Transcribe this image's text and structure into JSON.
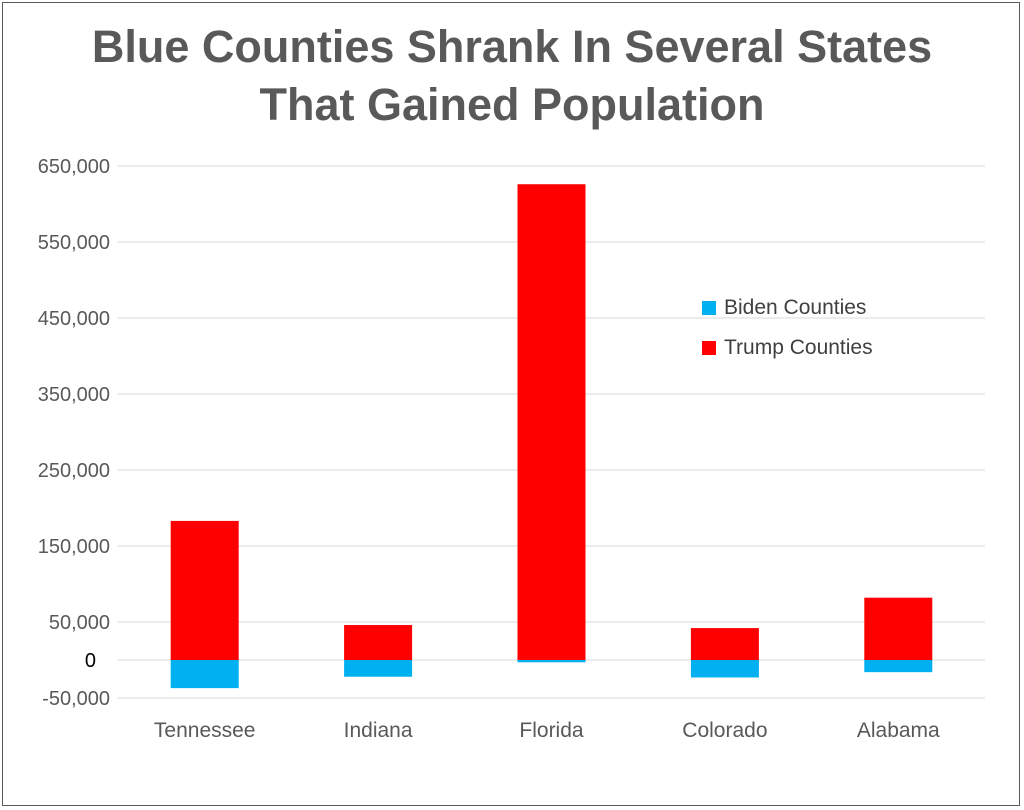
{
  "title": {
    "line1": "Blue Counties Shrank In Several States",
    "line2": "That Gained Population"
  },
  "colors": {
    "biden": "#00B0F0",
    "trump": "#FF0000",
    "grid": "#D9D9D9",
    "text": "#595959"
  },
  "legend": {
    "placement": "right",
    "items": [
      {
        "label": "Biden Counties",
        "color": "#00B0F0"
      },
      {
        "label": "Trump Counties",
        "color": "#FF0000"
      }
    ]
  },
  "chart_data": {
    "type": "bar",
    "stacked": true,
    "title": "Blue Counties Shrank In Several States That Gained Population",
    "xlabel": "",
    "ylabel": "",
    "categories": [
      "Tennessee",
      "Indiana",
      "Florida",
      "Colorado",
      "Alabama"
    ],
    "series": [
      {
        "name": "Biden Counties",
        "values": [
          -37000,
          -22000,
          -3000,
          -23000,
          -16000
        ]
      },
      {
        "name": "Trump Counties",
        "values": [
          183000,
          46000,
          626000,
          42000,
          82000
        ]
      }
    ],
    "ylim": [
      -50000,
      650000
    ],
    "yticks": [
      {
        "value": 650000,
        "label": "650,000"
      },
      {
        "value": 550000,
        "label": "550,000"
      },
      {
        "value": 450000,
        "label": "450,000"
      },
      {
        "value": 350000,
        "label": "350,000"
      },
      {
        "value": 250000,
        "label": "250,000"
      },
      {
        "value": 150000,
        "label": "150,000"
      },
      {
        "value": 50000,
        "label": "50,000"
      },
      {
        "value": 0,
        "label": "0"
      },
      {
        "value": -50000,
        "label": "-50,000"
      }
    ],
    "grid": true
  }
}
